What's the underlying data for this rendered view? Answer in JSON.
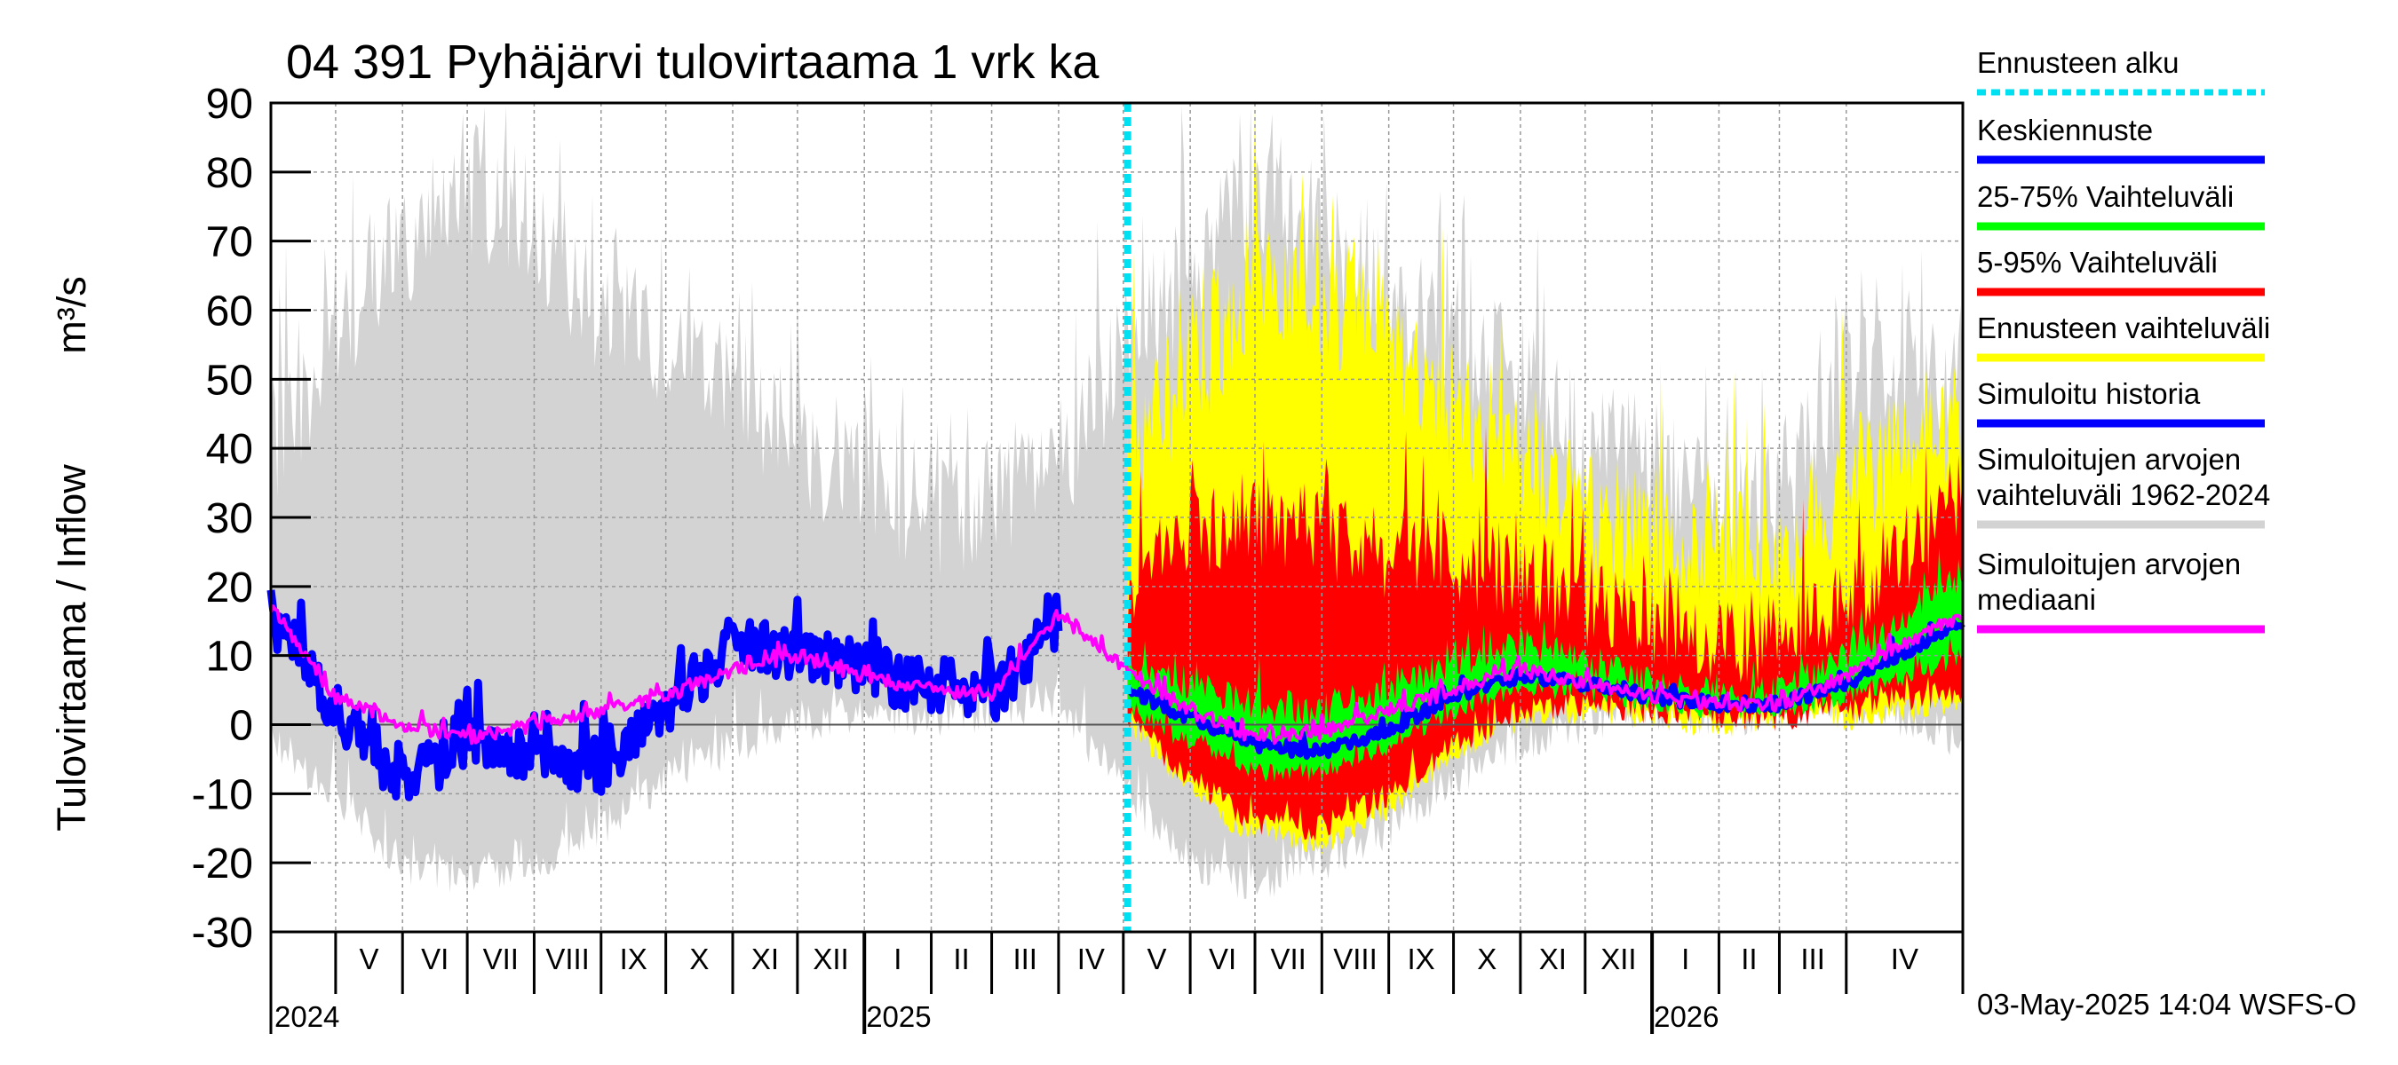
{
  "chart_data": {
    "type": "area",
    "title": "04 391 Pyhäjärvi tulovirtaama 1 vrk ka",
    "ylabel_left": "Tulovirtaama / Inflow",
    "ylabel_unit": "m³/s",
    "ylim": [
      -30,
      90
    ],
    "yticks": [
      "90",
      "80",
      "70",
      "60",
      "50",
      "40",
      "30",
      "20",
      "10",
      "0",
      "-10",
      "-20",
      "-30"
    ],
    "x_start": "2024-04-01",
    "x_end": "2026-05-25",
    "forecast_start": "2025-05-03",
    "months": [
      {
        "label": "V",
        "date": "2024-05-01"
      },
      {
        "label": "VI",
        "date": "2024-06-01"
      },
      {
        "label": "VII",
        "date": "2024-07-01"
      },
      {
        "label": "VIII",
        "date": "2024-08-01"
      },
      {
        "label": "IX",
        "date": "2024-09-01"
      },
      {
        "label": "X",
        "date": "2024-10-01"
      },
      {
        "label": "XI",
        "date": "2024-11-01"
      },
      {
        "label": "XII",
        "date": "2024-12-01"
      },
      {
        "label": "I",
        "date": "2025-01-01"
      },
      {
        "label": "II",
        "date": "2025-02-01"
      },
      {
        "label": "III",
        "date": "2025-03-01"
      },
      {
        "label": "IV",
        "date": "2025-04-01"
      },
      {
        "label": "V",
        "date": "2025-05-01"
      },
      {
        "label": "VI",
        "date": "2025-06-01"
      },
      {
        "label": "VII",
        "date": "2025-07-01"
      },
      {
        "label": "VIII",
        "date": "2025-08-01"
      },
      {
        "label": "IX",
        "date": "2025-09-01"
      },
      {
        "label": "X",
        "date": "2025-10-01"
      },
      {
        "label": "XI",
        "date": "2025-11-01"
      },
      {
        "label": "XII",
        "date": "2025-12-01"
      },
      {
        "label": "I",
        "date": "2026-01-01"
      },
      {
        "label": "II",
        "date": "2026-02-01"
      },
      {
        "label": "III",
        "date": "2026-03-01"
      },
      {
        "label": "IV",
        "date": "2026-04-01"
      }
    ],
    "years": [
      {
        "label": "2024",
        "date": "2024-05-01"
      },
      {
        "label": "2025",
        "date": "2025-01-01"
      },
      {
        "label": "2026",
        "date": "2026-01-01"
      }
    ],
    "series_points": {
      "dates": [
        "2024-04-01",
        "2024-05-01",
        "2024-06-01",
        "2024-07-01",
        "2024-08-01",
        "2024-09-01",
        "2024-10-01",
        "2024-11-01",
        "2024-12-01",
        "2025-01-01",
        "2025-02-01",
        "2025-03-01",
        "2025-04-01",
        "2025-05-03",
        "2025-06-01",
        "2025-07-01",
        "2025-08-01",
        "2025-09-01",
        "2025-10-01",
        "2025-11-01",
        "2025-12-01",
        "2026-01-01",
        "2026-02-01",
        "2026-03-01",
        "2026-04-01",
        "2026-05-25"
      ],
      "hist_min": [
        -2,
        -10,
        -20,
        -22,
        -20,
        -15,
        -8,
        -3,
        0,
        2,
        1,
        2,
        3,
        -10,
        -20,
        -23,
        -20,
        -15,
        -8,
        -3,
        0,
        2,
        1,
        2,
        3,
        -2
      ],
      "hist_max": [
        40,
        55,
        70,
        78,
        72,
        60,
        55,
        50,
        40,
        38,
        30,
        32,
        38,
        55,
        65,
        78,
        72,
        60,
        55,
        50,
        40,
        38,
        30,
        32,
        50,
        52
      ],
      "median": [
        17,
        4,
        0,
        -2,
        0,
        2,
        4,
        8,
        10,
        7,
        5,
        4,
        16,
        8,
        2,
        -2,
        -1,
        2,
        5,
        8,
        6,
        4,
        3,
        3,
        7,
        16
      ],
      "simulated": [
        16,
        2,
        -8,
        -3,
        -5,
        -6,
        2,
        12,
        10,
        8,
        5,
        4,
        15,
        null,
        null,
        null,
        null,
        null,
        null,
        null,
        null,
        null,
        null,
        null,
        null,
        null
      ],
      "forecast_mean": [
        null,
        null,
        null,
        null,
        null,
        null,
        null,
        null,
        null,
        null,
        null,
        null,
        null,
        5,
        1,
        -3,
        -4,
        -1,
        4,
        7,
        6,
        4,
        3,
        3,
        6,
        15
      ],
      "p25": [
        null,
        null,
        null,
        null,
        null,
        null,
        null,
        null,
        null,
        null,
        null,
        null,
        null,
        3,
        -3,
        -7,
        -7,
        -3,
        2,
        5,
        5,
        3,
        2,
        2,
        4,
        10
      ],
      "p75": [
        null,
        null,
        null,
        null,
        null,
        null,
        null,
        null,
        null,
        null,
        null,
        null,
        null,
        8,
        6,
        3,
        2,
        5,
        9,
        12,
        9,
        6,
        5,
        5,
        10,
        22
      ],
      "p05": [
        null,
        null,
        null,
        null,
        null,
        null,
        null,
        null,
        null,
        null,
        null,
        null,
        null,
        1,
        -8,
        -14,
        -15,
        -10,
        -3,
        2,
        3,
        2,
        1,
        1,
        2,
        5
      ],
      "p95": [
        null,
        null,
        null,
        null,
        null,
        null,
        null,
        null,
        null,
        null,
        null,
        null,
        null,
        20,
        28,
        30,
        28,
        25,
        24,
        22,
        18,
        15,
        12,
        13,
        18,
        33
      ],
      "f_min": [
        null,
        null,
        null,
        null,
        null,
        null,
        null,
        null,
        null,
        null,
        null,
        null,
        null,
        0,
        -10,
        -16,
        -17,
        -12,
        -4,
        1,
        2,
        1,
        0,
        1,
        1,
        3
      ],
      "f_max": [
        null,
        null,
        null,
        null,
        null,
        null,
        null,
        null,
        null,
        null,
        null,
        null,
        null,
        40,
        50,
        65,
        62,
        55,
        45,
        40,
        30,
        28,
        25,
        25,
        35,
        45
      ]
    }
  },
  "legend": [
    {
      "label": "Ennusteen alku",
      "color": "#00e0f0",
      "style": "dotted"
    },
    {
      "label": "Keskiennuste",
      "color": "#0000ff",
      "style": "solid"
    },
    {
      "label": "25-75% Vaihteluväli",
      "color": "#00ff00",
      "style": "solid"
    },
    {
      "label": "5-95% Vaihteluväli",
      "color": "#ff0000",
      "style": "solid"
    },
    {
      "label": "Ennusteen vaihteluväli",
      "color": "#ffff00",
      "style": "solid"
    },
    {
      "label": "Simuloitu historia",
      "color": "#0000ff",
      "style": "solid"
    },
    {
      "label": "Simuloitujen arvojen\nvaihteluväli 1962-2024",
      "color": "#d3d3d3",
      "style": "solid"
    },
    {
      "label": "Simuloitujen arvojen\nmediaani",
      "color": "#ff00ff",
      "style": "solid"
    }
  ],
  "colors": {
    "grey_band": "#d3d3d3",
    "yellow": "#ffff00",
    "red": "#ff0000",
    "green": "#00ff00",
    "blue": "#0000ff",
    "magenta": "#ff00ff",
    "cyan": "#00e0f0"
  },
  "footer_stamp": "03-May-2025 14:04 WSFS-O"
}
